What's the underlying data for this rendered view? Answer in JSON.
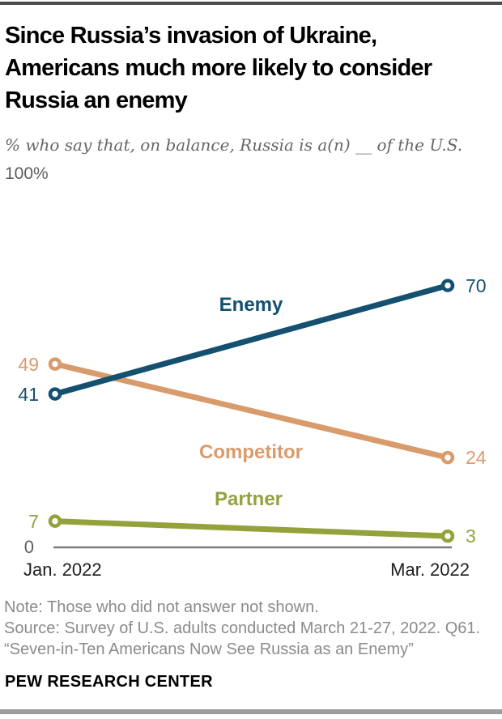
{
  "page": {
    "title_lines": [
      "Since Russia’s invasion of Ukraine,",
      "Americans much more likely to consider",
      "Russia an enemy"
    ],
    "subtitle": "% who say that, on balance, Russia is a(n) __ of the U.S.",
    "notes": [
      "Note: Those who did not answer not shown.",
      "Source: Survey of U.S. adults conducted March 21-27, 2022. Q61.",
      "“Seven-in-Ten Americans Now See Russia as an Enemy”"
    ],
    "footer": "PEW RESEARCH CENTER"
  },
  "chart_data": {
    "type": "line",
    "x": [
      "Jan. 2022",
      "Mar. 2022"
    ],
    "ylim": [
      0,
      100
    ],
    "y_top_label": "100%",
    "y_bottom_label": "0",
    "grid": false,
    "legend_position": "inline-labels",
    "axis_color": "#7d7d7d",
    "series": [
      {
        "name": "Enemy",
        "values": [
          41,
          70
        ],
        "color": "#14506f"
      },
      {
        "name": "Competitor",
        "values": [
          49,
          24
        ],
        "color": "#d99b6c"
      },
      {
        "name": "Partner",
        "values": [
          7,
          3
        ],
        "color": "#95a23c"
      }
    ]
  }
}
